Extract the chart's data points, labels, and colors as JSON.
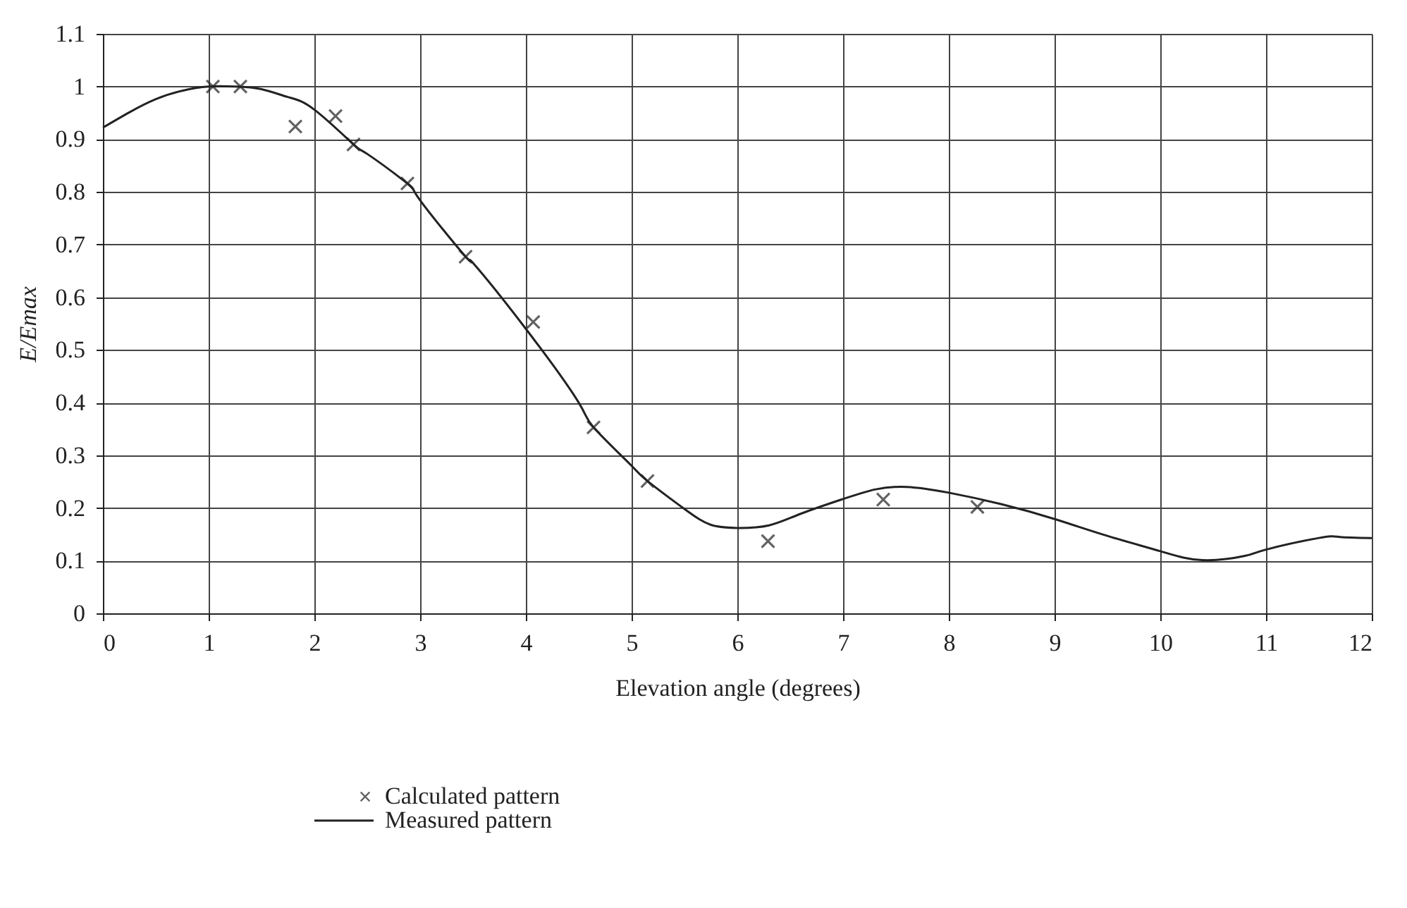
{
  "chart_data": {
    "type": "line",
    "xlabel": "Elevation angle (degrees)",
    "ylabel": "E/Emax",
    "xlim": [
      0,
      12
    ],
    "xticks": [
      0,
      1,
      2,
      3,
      4,
      5,
      6,
      7,
      8,
      9,
      10,
      11,
      12
    ],
    "ylim": [
      0,
      1.1
    ],
    "yticks": [
      0,
      0.1,
      0.2,
      0.3,
      0.4,
      0.5,
      0.6,
      0.7,
      0.8,
      0.9,
      1,
      1.1
    ],
    "grid": true,
    "legend": "bottom left",
    "series": [
      {
        "name": "Calculated pattern",
        "type": "scatter",
        "marker": "cross",
        "color": "#222222",
        "x": [
          1.04,
          1.3,
          1.82,
          2.2,
          2.37,
          2.88,
          3.43,
          4.07,
          4.64,
          5.15,
          6.29,
          7.38,
          8.27
        ],
        "values": [
          1.0,
          1.0,
          0.924,
          0.944,
          0.89,
          0.816,
          0.677,
          0.553,
          0.353,
          0.251,
          0.137,
          0.216,
          0.202
        ]
      },
      {
        "name": "Measured pattern",
        "marker": "none",
        "line_style": "solid",
        "color": "#222222",
        "x": [
          0,
          0.25,
          0.5,
          0.75,
          1.0,
          1.25,
          1.5,
          1.75,
          2.0,
          2.37,
          2.5,
          2.88,
          3.0,
          3.43,
          3.5,
          4.0,
          4.5,
          4.64,
          5.0,
          5.15,
          5.5,
          5.75,
          6.0,
          6.3,
          6.6,
          7.0,
          7.3,
          7.6,
          8.0,
          8.5,
          9.0,
          9.5,
          10.0,
          10.4,
          10.8,
          11.0,
          11.5,
          11.7,
          12.0
        ],
        "values": [
          0.922,
          0.951,
          0.976,
          0.992,
          1.0,
          1.0,
          0.995,
          0.98,
          0.956,
          0.89,
          0.872,
          0.816,
          0.784,
          0.677,
          0.665,
          0.54,
          0.4,
          0.353,
          0.28,
          0.251,
          0.198,
          0.168,
          0.162,
          0.167,
          0.189,
          0.217,
          0.235,
          0.24,
          0.229,
          0.207,
          0.179,
          0.147,
          0.118,
          0.101,
          0.109,
          0.121,
          0.143,
          0.145,
          0.143
        ]
      }
    ]
  }
}
